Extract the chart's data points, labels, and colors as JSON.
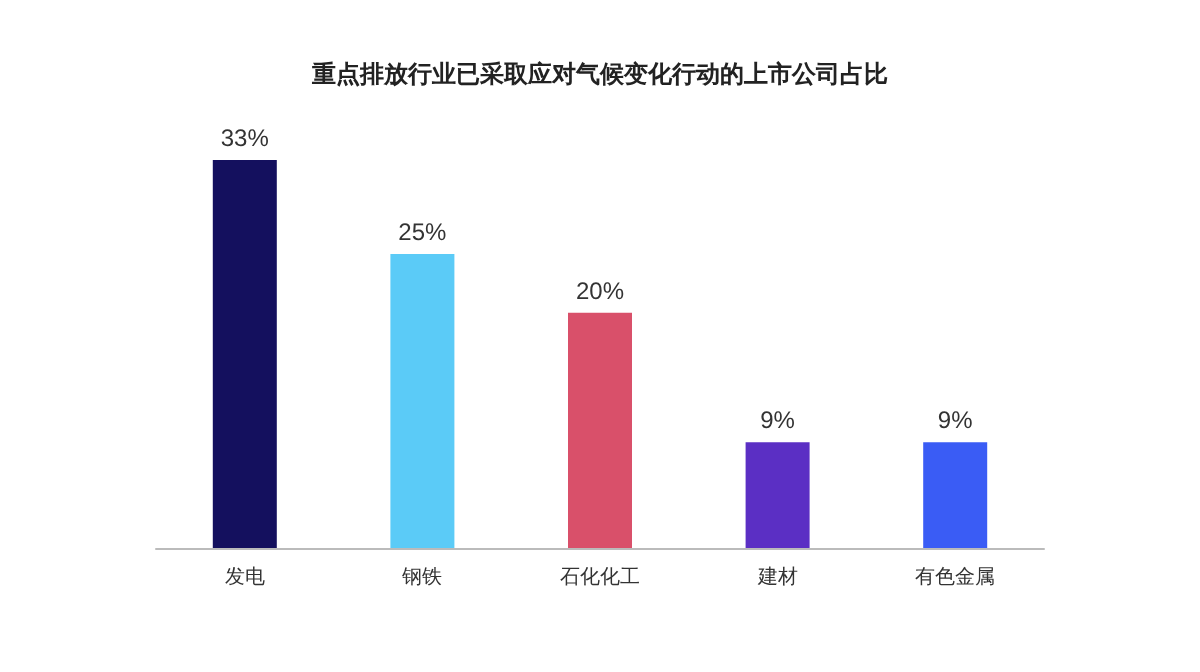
{
  "chart_data": {
    "type": "bar",
    "title": "重点排放行业已采取应对气候变化行动的上市公司占比",
    "categories": [
      "发电",
      "钢铁",
      "石化化工",
      "建材",
      "有色金属"
    ],
    "values": [
      33,
      25,
      20,
      9,
      9
    ],
    "colors": [
      "#14105e",
      "#5bcbf7",
      "#d9506a",
      "#5b2fc4",
      "#3a5cf5"
    ],
    "value_labels": [
      "33%",
      "25%",
      "20%",
      "9%",
      "9%"
    ]
  }
}
